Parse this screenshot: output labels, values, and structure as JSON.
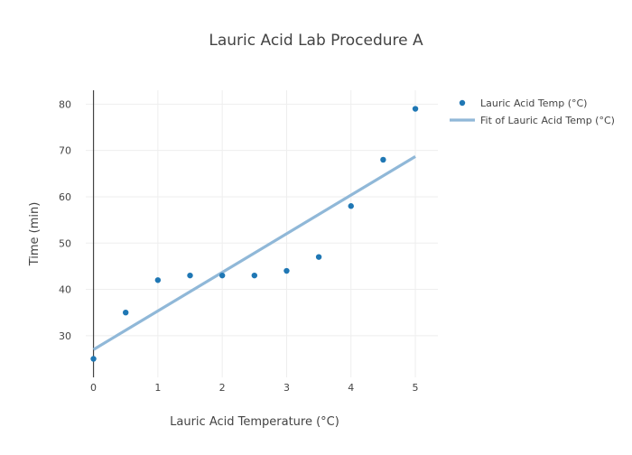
{
  "chart_data": {
    "type": "scatter",
    "title": "Lauric Acid Lab Procedure A",
    "xlabel": "Lauric Acid Temperature (°C)",
    "ylabel": "Time (min)",
    "xlim": [
      -0.12,
      5.35
    ],
    "ylim": [
      21,
      83
    ],
    "xticks": [
      0,
      1,
      2,
      3,
      4,
      5
    ],
    "yticks": [
      30,
      40,
      50,
      60,
      70,
      80
    ],
    "grid": true,
    "legend_position": "top-right",
    "series": [
      {
        "name": "Lauric Acid Temp (°C)",
        "mode": "markers",
        "color": "#1f77b4",
        "x": [
          0,
          0.5,
          1,
          1.5,
          2,
          2.5,
          3,
          3.5,
          4,
          4.5,
          5
        ],
        "y": [
          25,
          35,
          42,
          43,
          43,
          43,
          44,
          47,
          58,
          68,
          79
        ]
      },
      {
        "name": "Fit of Lauric Acid Temp (°C)",
        "mode": "line",
        "color": "#90b8d8",
        "x": [
          0,
          5
        ],
        "y": [
          27,
          68.7
        ]
      }
    ]
  }
}
